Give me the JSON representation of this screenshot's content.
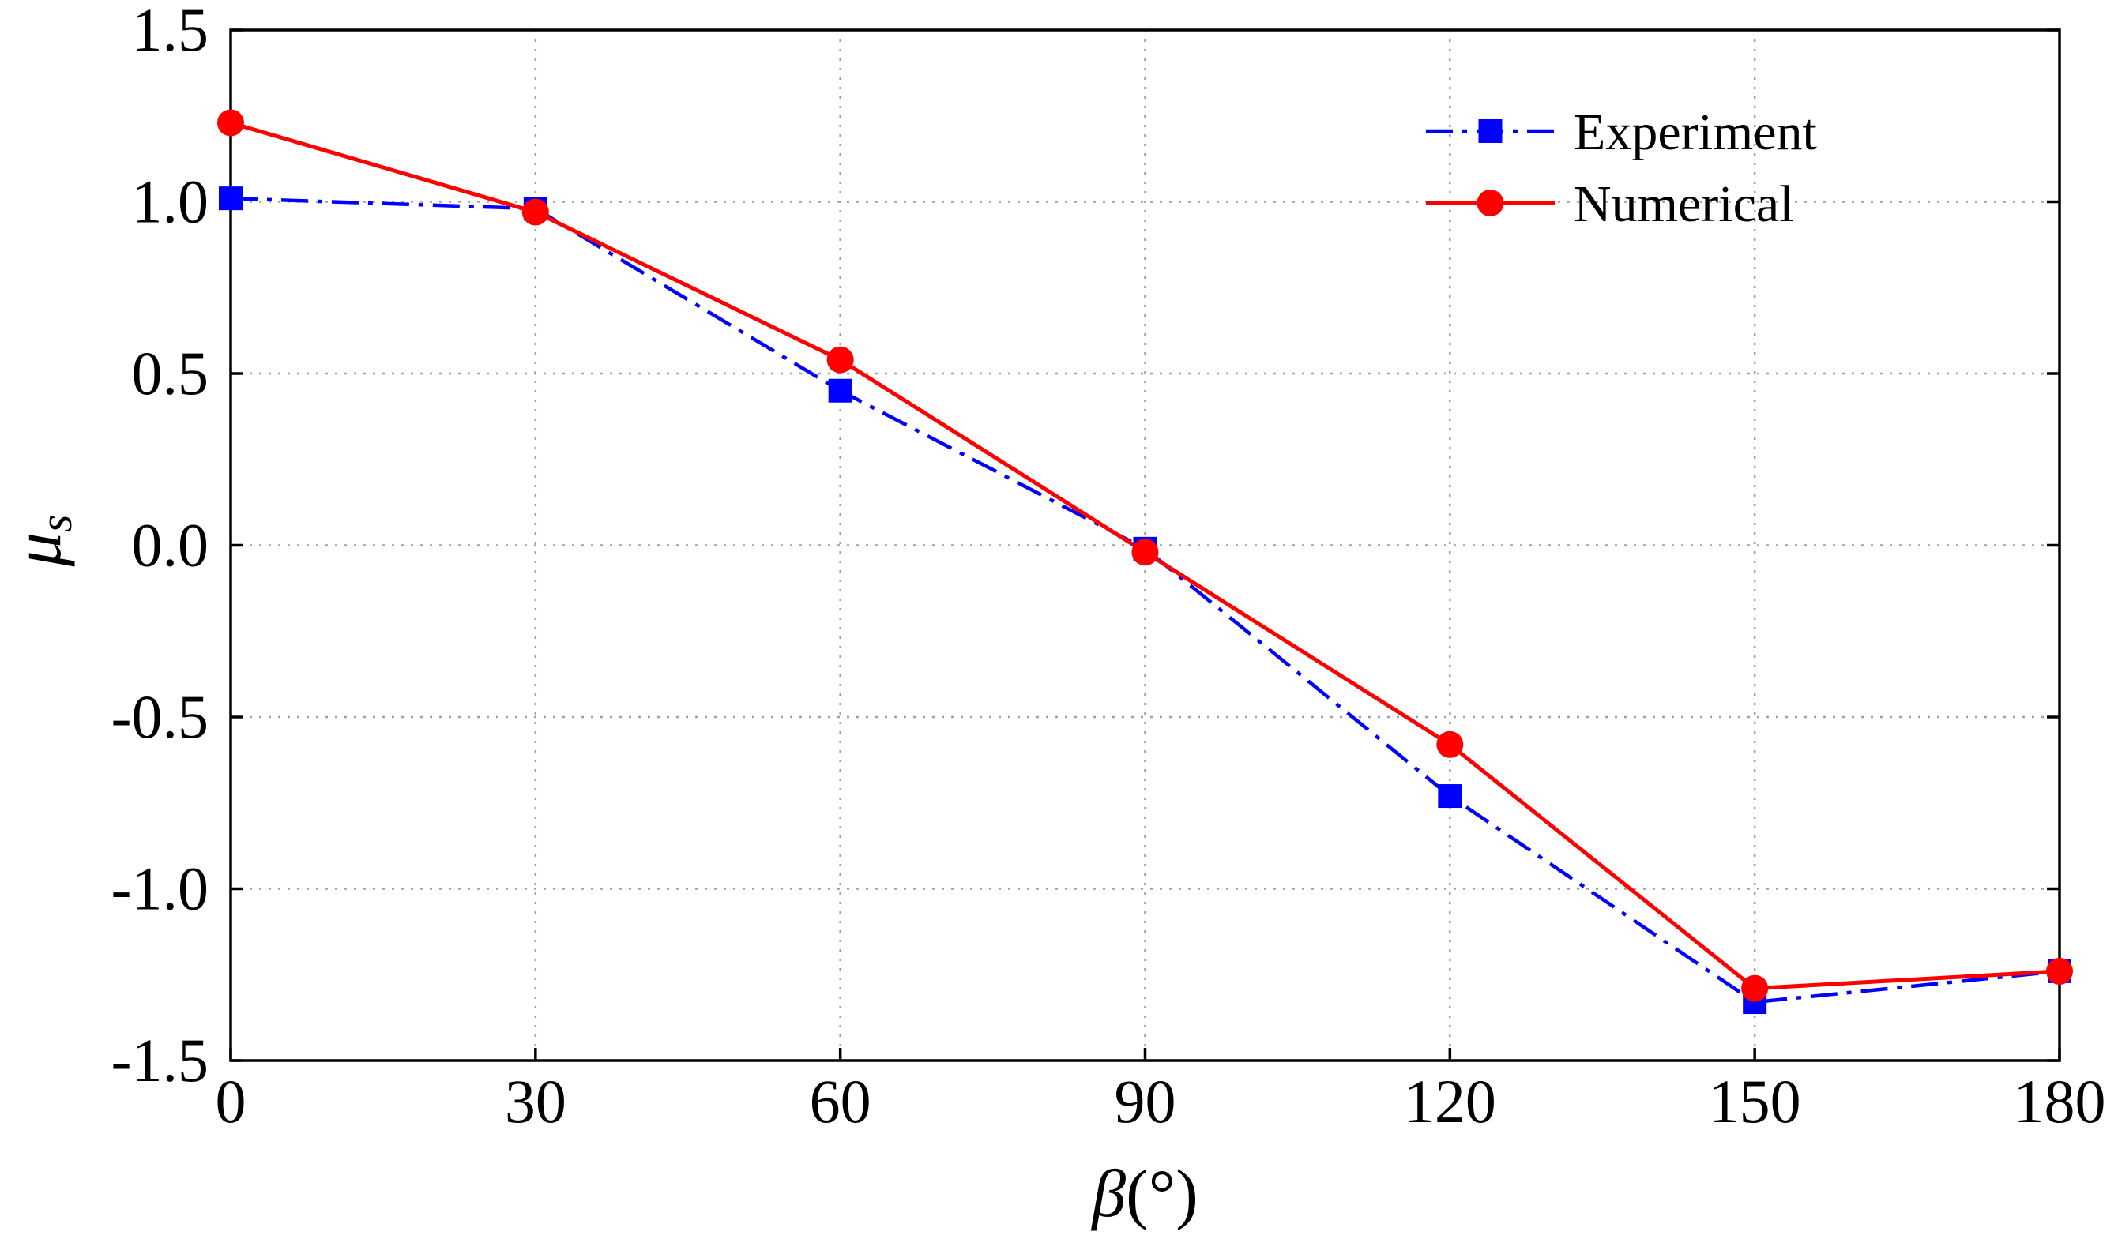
{
  "chart_data": {
    "type": "line",
    "title": "",
    "xlabel": "β(°)",
    "ylabel": "μs",
    "xlim": [
      0,
      180
    ],
    "ylim": [
      -1.5,
      1.5
    ],
    "x_ticks": [
      0,
      30,
      60,
      90,
      120,
      150,
      180
    ],
    "x_tick_labels": [
      "0",
      "30",
      "60",
      "90",
      "120",
      "150",
      "180"
    ],
    "y_ticks": [
      -1.5,
      -1.0,
      -0.5,
      0.0,
      0.5,
      1.0,
      1.5
    ],
    "y_tick_labels": [
      "-1.5",
      "-1.0",
      "-0.5",
      "0.0",
      "0.5",
      "1.0",
      "1.5"
    ],
    "grid": true,
    "legend_position": "top-right",
    "x": [
      0,
      30,
      60,
      90,
      120,
      150,
      180
    ],
    "series": [
      {
        "name": "Experiment",
        "values": [
          1.01,
          0.98,
          0.45,
          -0.01,
          -0.73,
          -1.33,
          -1.24
        ],
        "color": "#0000ff",
        "line_style": "dash-dot",
        "marker": "square"
      },
      {
        "name": "Numerical",
        "values": [
          1.23,
          0.97,
          0.54,
          -0.02,
          -0.58,
          -1.29,
          -1.24
        ],
        "color": "#ff0000",
        "line_style": "solid",
        "marker": "circle"
      }
    ]
  }
}
